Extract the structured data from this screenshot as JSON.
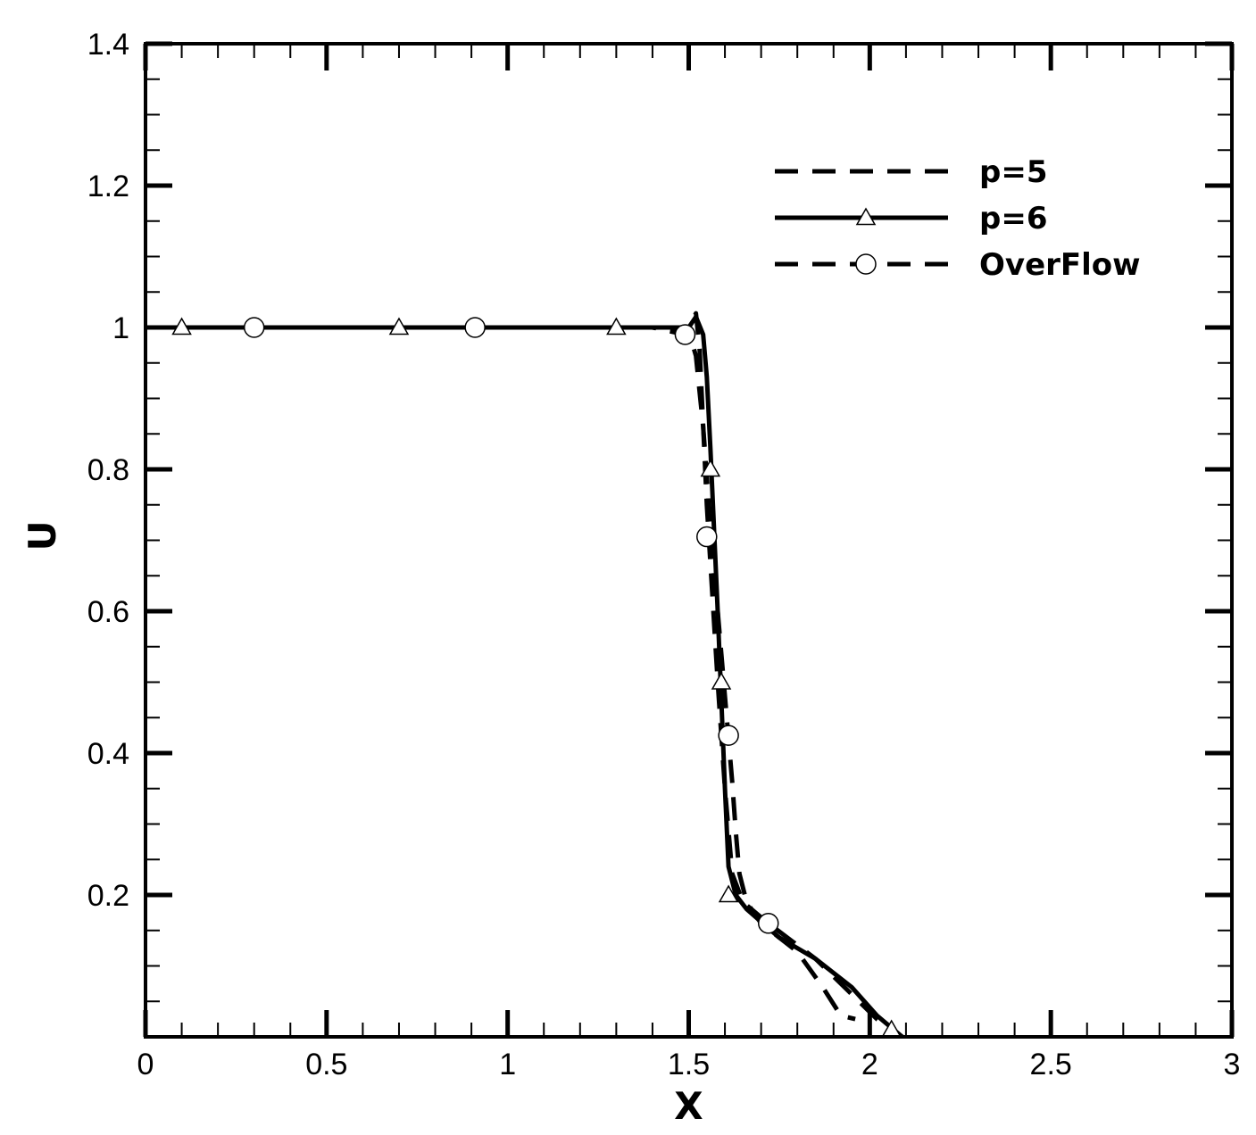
{
  "chart_data": {
    "type": "line",
    "title": "",
    "xlabel": "X",
    "ylabel": "U",
    "xlim": [
      0,
      3
    ],
    "ylim": [
      0,
      1.4
    ],
    "xticks": [
      0,
      0.5,
      1,
      1.5,
      2,
      2.5,
      3
    ],
    "xtick_labels": [
      "0",
      "0.5",
      "1",
      "1.5",
      "2",
      "2.5",
      "3"
    ],
    "yticks": [
      0.2,
      0.4,
      0.6,
      0.8,
      1,
      1.2,
      1.4
    ],
    "ytick_labels": [
      "0.2",
      "0.4",
      "0.6",
      "0.8",
      "1",
      "1.2",
      "1.4"
    ],
    "x_minor_step": 0.1,
    "y_minor_step": 0.05,
    "grid": false,
    "legend_position": "top-right",
    "series": [
      {
        "name": "p=5",
        "line_style": "dashed",
        "marker": "none",
        "color": "#000000",
        "x": [
          0.0,
          0.5,
          1.0,
          1.4,
          1.5,
          1.52,
          1.54,
          1.55,
          1.56,
          1.58,
          1.6,
          1.62,
          1.63,
          1.64,
          1.66,
          1.7,
          1.8,
          1.87,
          1.92,
          1.96
        ],
        "y": [
          1.0,
          1.0,
          1.0,
          1.0,
          0.995,
          0.96,
          0.86,
          0.79,
          0.71,
          0.6,
          0.48,
          0.36,
          0.29,
          0.23,
          0.19,
          0.16,
          0.12,
          0.07,
          0.03,
          0.025
        ]
      },
      {
        "name": "p=6",
        "line_style": "solid",
        "marker": "triangle",
        "color": "#000000",
        "x": [
          0.0,
          0.5,
          1.0,
          1.5,
          1.52,
          1.54,
          1.55,
          1.56,
          1.58,
          1.6,
          1.61,
          1.63,
          1.66,
          1.75,
          1.85,
          1.95,
          2.02,
          2.09
        ],
        "y": [
          1.0,
          1.0,
          1.0,
          1.0,
          1.015,
          0.99,
          0.93,
          0.83,
          0.6,
          0.35,
          0.24,
          0.2,
          0.18,
          0.14,
          0.11,
          0.07,
          0.03,
          0.0
        ],
        "marker_x": [
          0.1,
          0.7,
          1.3,
          1.56,
          1.59,
          1.61,
          2.06
        ],
        "marker_y": [
          1.0,
          1.0,
          1.0,
          0.8,
          0.5,
          0.2,
          0.01
        ]
      },
      {
        "name": "OverFlow",
        "line_style": "dashed",
        "marker": "circle",
        "color": "#000000",
        "x": [
          0.0,
          0.5,
          1.0,
          1.4,
          1.49,
          1.52,
          1.53,
          1.55,
          1.58,
          1.6,
          1.62,
          1.65,
          1.72,
          1.85,
          1.95,
          2.02,
          2.09
        ],
        "y": [
          1.0,
          1.0,
          1.0,
          1.0,
          0.99,
          1.02,
          0.97,
          0.75,
          0.5,
          0.35,
          0.23,
          0.19,
          0.16,
          0.11,
          0.06,
          0.025,
          0.0
        ],
        "marker_x": [
          0.3,
          0.91,
          1.49,
          1.55,
          1.61,
          1.72
        ],
        "marker_y": [
          1.0,
          1.0,
          0.99,
          0.705,
          0.425,
          0.16
        ]
      }
    ]
  }
}
